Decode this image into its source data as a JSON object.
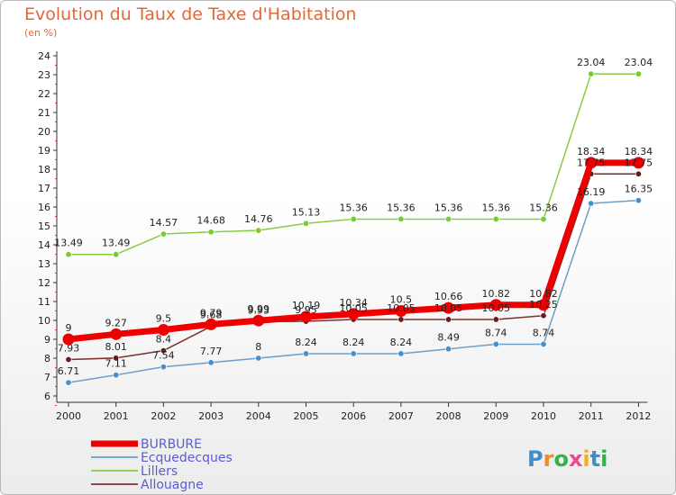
{
  "header": {
    "title": "Evolution du Taux de Taxe d'Habitation",
    "subtitle": "(en %)"
  },
  "brand": {
    "letters": [
      "P",
      "r",
      "o",
      "x",
      "i",
      "t",
      "i"
    ],
    "colors": [
      "#3b8fd1",
      "#f08a24",
      "#2fb34a",
      "#e74c8c",
      "#f2b01e",
      "#3b8fd1",
      "#2fb34a"
    ]
  },
  "chart_data": {
    "type": "line",
    "x": [
      "2000",
      "2001",
      "2002",
      "2003",
      "2004",
      "2005",
      "2006",
      "2007",
      "2008",
      "2009",
      "2010",
      "2011",
      "2012"
    ],
    "ylim": [
      6,
      24
    ],
    "yticks": [
      6,
      7,
      8,
      9,
      10,
      11,
      12,
      13,
      14,
      15,
      16,
      17,
      18,
      19,
      20,
      21,
      22,
      23,
      24
    ],
    "grid": false,
    "legend_position": "bottom-left",
    "series": [
      {
        "name": "Lillers",
        "color": "#88cc44",
        "dot": "#77cc33",
        "width": 1.5,
        "values": [
          13.49,
          13.49,
          14.57,
          14.68,
          14.76,
          15.13,
          15.36,
          15.36,
          15.36,
          15.36,
          15.36,
          23.04,
          23.04
        ],
        "labels": [
          "13.49",
          "13.49",
          "14.57",
          "14.68",
          "14.76",
          "15.13",
          "15.36",
          "15.36",
          "15.36",
          "15.36",
          "15.36",
          "23.04",
          "23.04"
        ]
      },
      {
        "name": "Ecquedecques",
        "color": "#6d9ec7",
        "dot": "#4a8fc9",
        "width": 1.5,
        "values": [
          6.71,
          7.11,
          7.54,
          7.77,
          8,
          8.24,
          8.24,
          8.24,
          8.49,
          8.74,
          8.74,
          16.19,
          16.35
        ],
        "labels": [
          "6.71",
          "7.11",
          "7.54",
          "7.77",
          "8",
          "8.24",
          "8.24",
          "8.24",
          "8.49",
          "8.74",
          "8.74",
          "16.19",
          "16.35"
        ]
      },
      {
        "name": "Allouagne",
        "color": "#7a3030",
        "dot": "#6b1a1a",
        "width": 1.5,
        "values": [
          7.93,
          8.01,
          8.4,
          9.68,
          9.93,
          9.95,
          10.05,
          10.05,
          10.05,
          10.05,
          10.25,
          17.75,
          17.75
        ],
        "labels": [
          "7.93",
          "8.01",
          "8.4",
          "9.68",
          "9.93",
          "9.95",
          "10.05",
          "10.05",
          "10.05",
          "10.05",
          "10.25",
          "17.75",
          "17.75"
        ]
      },
      {
        "name": "BURBURE",
        "color": "#ee0000",
        "dot": "#ee0000",
        "width": 7,
        "values": [
          9,
          9.27,
          9.5,
          9.79,
          9.99,
          10.19,
          10.34,
          10.5,
          10.66,
          10.82,
          10.82,
          18.34,
          18.34
        ],
        "labels": [
          "9",
          "9.27",
          "9.5",
          "9.79",
          "9.99",
          "10.19",
          "10.34",
          "10.5",
          "10.66",
          "10.82",
          "10.82",
          "18.34",
          "18.34"
        ]
      }
    ],
    "legend": [
      {
        "name": "BURBURE",
        "color": "#ee0000",
        "text_color": "#5b5bd6"
      },
      {
        "name": "Ecquedecques",
        "color": "#6d9ec7",
        "text_color": "#5b5bd6"
      },
      {
        "name": "Lillers",
        "color": "#88cc44",
        "text_color": "#5b5bd6"
      },
      {
        "name": "Allouagne",
        "color": "#7a3030",
        "text_color": "#5b5bd6"
      }
    ]
  }
}
